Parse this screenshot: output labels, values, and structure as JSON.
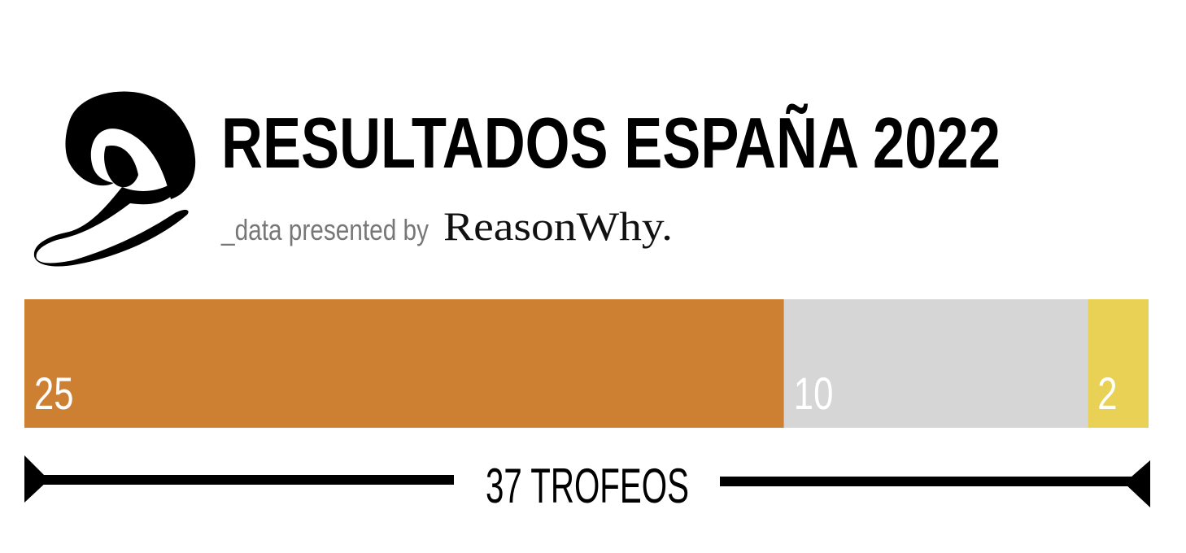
{
  "chart_data": {
    "type": "stacked-bar",
    "title": "RESULTADOS ESPAÑA 2022",
    "subtitle": "_data presented by",
    "brand": "ReasonWhy.",
    "values": [
      25,
      10,
      2
    ],
    "colors": [
      "#cd7f32",
      "#d6d6d6",
      "#e9d155"
    ],
    "annotation": "37 TROFEOS"
  }
}
